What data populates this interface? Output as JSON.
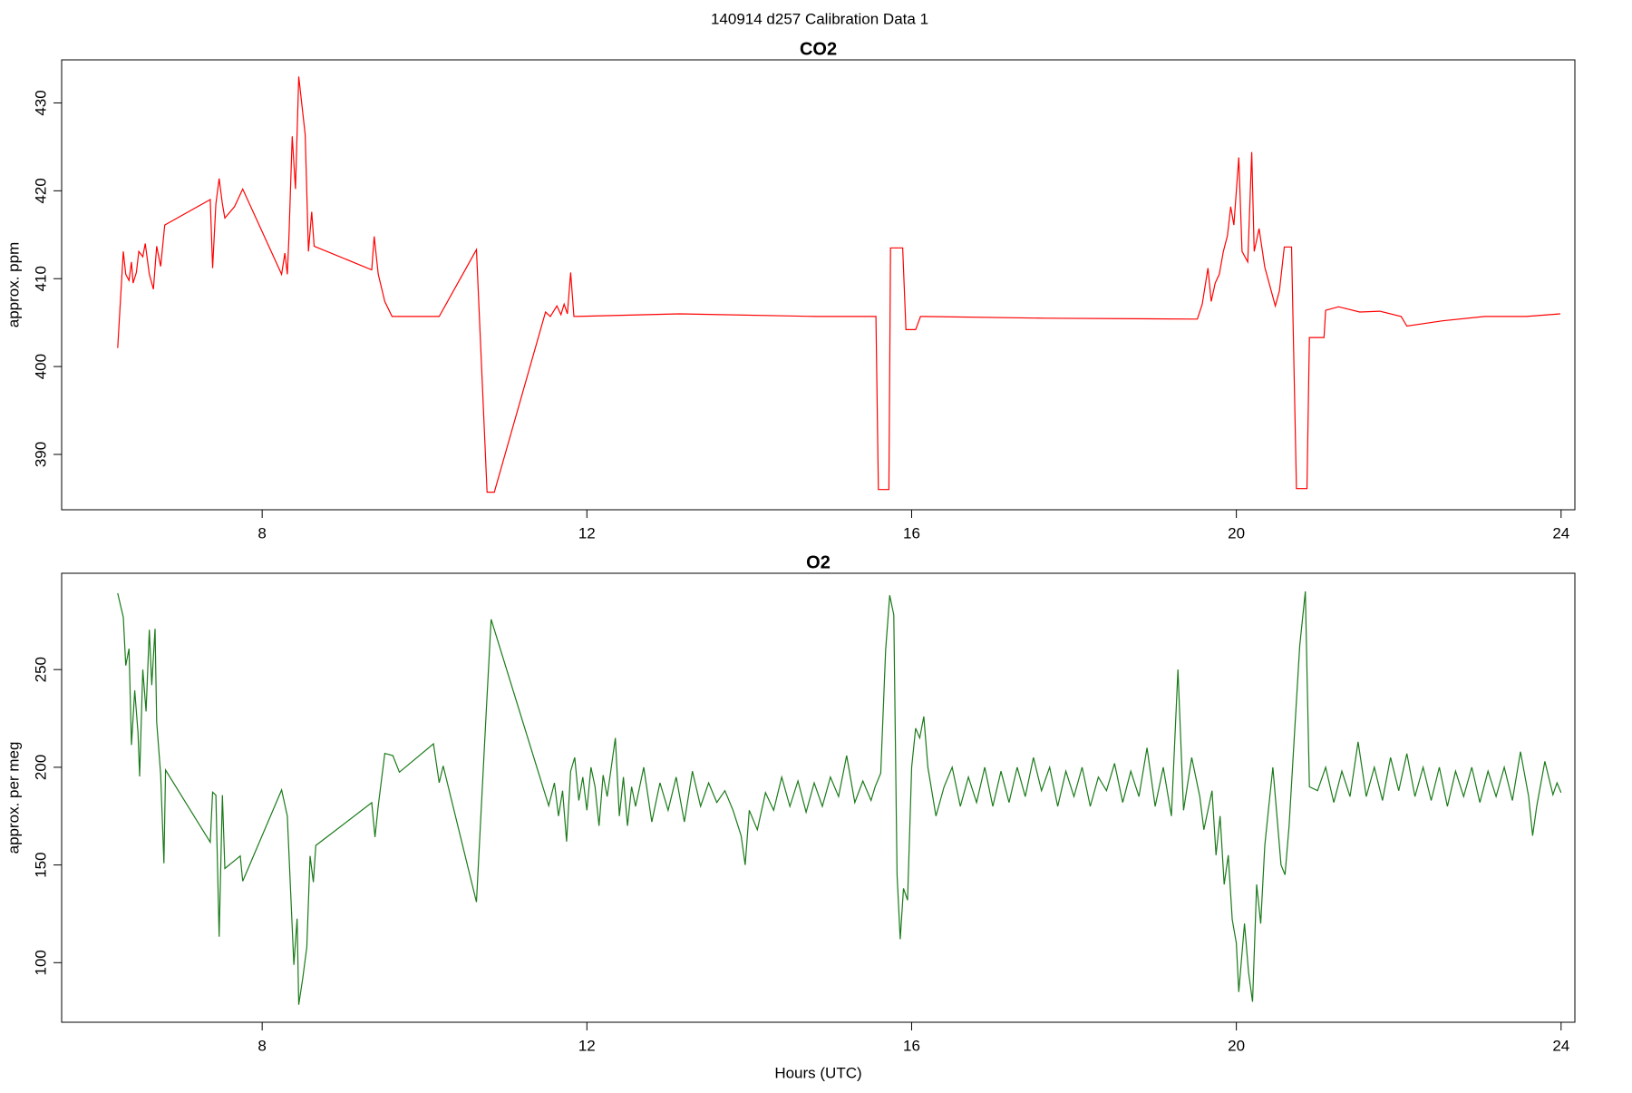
{
  "title": "140914   d257   Calibration Data 1",
  "chart_data": [
    {
      "type": "line",
      "title": "CO2",
      "ylabel": "approx. ppm",
      "color": "#ff0000",
      "xlim": [
        5.53,
        24.17
      ],
      "xticks": [
        8,
        12,
        16,
        20,
        24
      ],
      "ylim": [
        383.7,
        434.9
      ],
      "yticks": [
        390,
        400,
        410,
        420,
        430
      ],
      "x": [
        6.22,
        6.29,
        6.32,
        6.36,
        6.39,
        6.41,
        6.45,
        6.48,
        6.53,
        6.56,
        6.61,
        6.66,
        6.7,
        6.75,
        6.8,
        7.36,
        7.39,
        7.43,
        7.47,
        7.51,
        7.54,
        7.66,
        7.76,
        8.24,
        8.28,
        8.31,
        8.33,
        8.37,
        8.41,
        8.45,
        8.53,
        8.57,
        8.61,
        8.64,
        9.35,
        9.38,
        9.43,
        9.51,
        9.6,
        10.18,
        10.64,
        10.77,
        10.86,
        11.49,
        11.55,
        11.63,
        11.68,
        11.72,
        11.76,
        11.8,
        11.84,
        13.14,
        14.82,
        15.56,
        15.59,
        15.72,
        15.74,
        15.89,
        15.93,
        16.05,
        16.11,
        17.65,
        19.52,
        19.58,
        19.65,
        19.69,
        19.74,
        19.79,
        19.84,
        19.89,
        19.93,
        19.97,
        20.03,
        20.07,
        20.14,
        20.19,
        20.22,
        20.28,
        20.35,
        20.48,
        20.53,
        20.59,
        20.68,
        20.74,
        20.87,
        20.9,
        21.08,
        21.1,
        21.26,
        21.52,
        21.77,
        22.03,
        22.1,
        22.54,
        23.06,
        23.57,
        23.99
      ],
      "values": [
        402.1,
        413.1,
        410.5,
        409.8,
        411.9,
        409.5,
        410.7,
        413.1,
        412.5,
        414,
        410.5,
        408.8,
        413.7,
        411.4,
        416.1,
        419.0,
        411.2,
        418.5,
        421.4,
        418.5,
        416.9,
        418.2,
        420.2,
        410.5,
        412.9,
        410.5,
        414.8,
        426.2,
        420.2,
        433.0,
        426.4,
        413.1,
        417.6,
        413.7,
        411.0,
        414.8,
        410.5,
        407.4,
        405.7,
        405.7,
        413.3,
        385.7,
        385.7,
        406.2,
        405.7,
        406.9,
        405.9,
        407.1,
        406.0,
        410.7,
        405.7,
        406.0,
        405.7,
        405.7,
        386.0,
        386.0,
        413.5,
        413.5,
        404.2,
        404.2,
        405.7,
        405.5,
        405.4,
        407.1,
        411.2,
        407.4,
        409.5,
        410.5,
        413.1,
        414.9,
        418.2,
        416.1,
        423.8,
        413.1,
        411.9,
        424.4,
        413.1,
        415.7,
        411.3,
        406.9,
        408.6,
        413.6,
        413.6,
        386.1,
        386.1,
        403.3,
        403.3,
        406.4,
        406.8,
        406.2,
        406.3,
        405.7,
        404.6,
        405.2,
        405.7,
        405.7,
        406.0
      ]
    },
    {
      "type": "line",
      "title": "O2",
      "ylabel": "approx. per meg",
      "xlabel": "Hours (UTC)",
      "color": "#1a7a1a",
      "xlim": [
        5.53,
        24.17
      ],
      "xticks": [
        8,
        12,
        16,
        20,
        24
      ],
      "ylim": [
        69.5,
        299.3
      ],
      "yticks": [
        100,
        150,
        200,
        250
      ],
      "x": [
        6.22,
        6.29,
        6.32,
        6.36,
        6.39,
        6.43,
        6.47,
        6.49,
        6.53,
        6.57,
        6.61,
        6.64,
        6.68,
        6.7,
        6.75,
        6.79,
        6.81,
        7.36,
        7.39,
        7.43,
        7.47,
        7.51,
        7.54,
        7.73,
        7.76,
        8.24,
        8.31,
        8.39,
        8.43,
        8.45,
        8.5,
        8.55,
        8.59,
        8.63,
        8.66,
        9.35,
        9.39,
        9.43,
        9.51,
        9.61,
        9.69,
        10.11,
        10.18,
        10.23,
        10.64,
        10.76,
        10.82,
        11.53,
        11.6,
        11.65,
        11.7,
        11.75,
        11.8,
        11.85,
        11.9,
        11.95,
        12.0,
        12.05,
        12.1,
        12.15,
        12.2,
        12.25,
        12.3,
        12.35,
        12.4,
        12.45,
        12.5,
        12.55,
        12.6,
        12.7,
        12.8,
        12.9,
        13.0,
        13.1,
        13.2,
        13.3,
        13.4,
        13.5,
        13.6,
        13.7,
        13.8,
        13.9,
        13.95,
        14.0,
        14.1,
        14.2,
        14.3,
        14.4,
        14.5,
        14.6,
        14.7,
        14.8,
        14.9,
        15.0,
        15.1,
        15.2,
        15.3,
        15.4,
        15.5,
        15.55,
        15.62,
        15.68,
        15.73,
        15.78,
        15.82,
        15.86,
        15.9,
        15.95,
        16.0,
        16.05,
        16.1,
        16.15,
        16.2,
        16.3,
        16.4,
        16.5,
        16.6,
        16.7,
        16.8,
        16.9,
        17.0,
        17.1,
        17.2,
        17.3,
        17.4,
        17.5,
        17.6,
        17.7,
        17.8,
        17.9,
        18.0,
        18.1,
        18.2,
        18.3,
        18.4,
        18.5,
        18.6,
        18.7,
        18.8,
        18.9,
        19.0,
        19.1,
        19.2,
        19.28,
        19.35,
        19.45,
        19.55,
        19.6,
        19.7,
        19.75,
        19.8,
        19.85,
        19.9,
        19.95,
        20.0,
        20.03,
        20.06,
        20.1,
        20.15,
        20.2,
        20.25,
        20.3,
        20.35,
        20.4,
        20.45,
        20.5,
        20.55,
        20.6,
        20.65,
        20.72,
        20.78,
        20.85,
        20.9,
        21.0,
        21.1,
        21.2,
        21.3,
        21.4,
        21.5,
        21.6,
        21.7,
        21.8,
        21.9,
        22.0,
        22.1,
        22.2,
        22.3,
        22.4,
        22.5,
        22.6,
        22.7,
        22.8,
        22.9,
        23.0,
        23.1,
        23.2,
        23.3,
        23.4,
        23.5,
        23.6,
        23.65,
        23.7,
        23.8,
        23.9,
        23.95,
        24.0
      ],
      "values": [
        289.1,
        276.8,
        252.1,
        260.7,
        211.4,
        239.3,
        217.8,
        195.3,
        250,
        228.6,
        270.4,
        242,
        270.9,
        223.2,
        196.4,
        150.9,
        198.6,
        161.6,
        187.3,
        185.7,
        113.3,
        185.7,
        148.2,
        154.6,
        141.7,
        188.4,
        175,
        98.9,
        122.5,
        78.5,
        91.9,
        108,
        154.6,
        141.2,
        160,
        181.9,
        164.3,
        180.3,
        207.1,
        206,
        197.5,
        212,
        192.1,
        200.7,
        131.0,
        228.6,
        275.7,
        180.3,
        192,
        175,
        188,
        162,
        198,
        205,
        183,
        195,
        178,
        200,
        190,
        170,
        196,
        185,
        200,
        215,
        175,
        195,
        170,
        190,
        180,
        200,
        172,
        192,
        178,
        195,
        172,
        198,
        180,
        192,
        182,
        188,
        178,
        165,
        150,
        178,
        168,
        187,
        178,
        195,
        180,
        193,
        177,
        192,
        180,
        195,
        185,
        206,
        182,
        193,
        183,
        190,
        197,
        260,
        288,
        278,
        145,
        112,
        138,
        132,
        200,
        220,
        215,
        226,
        200,
        175,
        190,
        200,
        180,
        195,
        182,
        200,
        180,
        198,
        182,
        200,
        185,
        205,
        188,
        200,
        180,
        198,
        185,
        200,
        180,
        195,
        188,
        202,
        182,
        198,
        185,
        210,
        180,
        200,
        175,
        250,
        178,
        205,
        185,
        168,
        188,
        155,
        175,
        140,
        155,
        122,
        110,
        85,
        100,
        120,
        95,
        80,
        140,
        120,
        160,
        180,
        200,
        175,
        150,
        145,
        170,
        220,
        262,
        290,
        190,
        188,
        200,
        182,
        198,
        185,
        213,
        185,
        200,
        183,
        205,
        188,
        207,
        185,
        200,
        183,
        200,
        180,
        198,
        185,
        200,
        182,
        198,
        185,
        200,
        183,
        208,
        185,
        165,
        180,
        203,
        186,
        192,
        187
      ]
    }
  ]
}
